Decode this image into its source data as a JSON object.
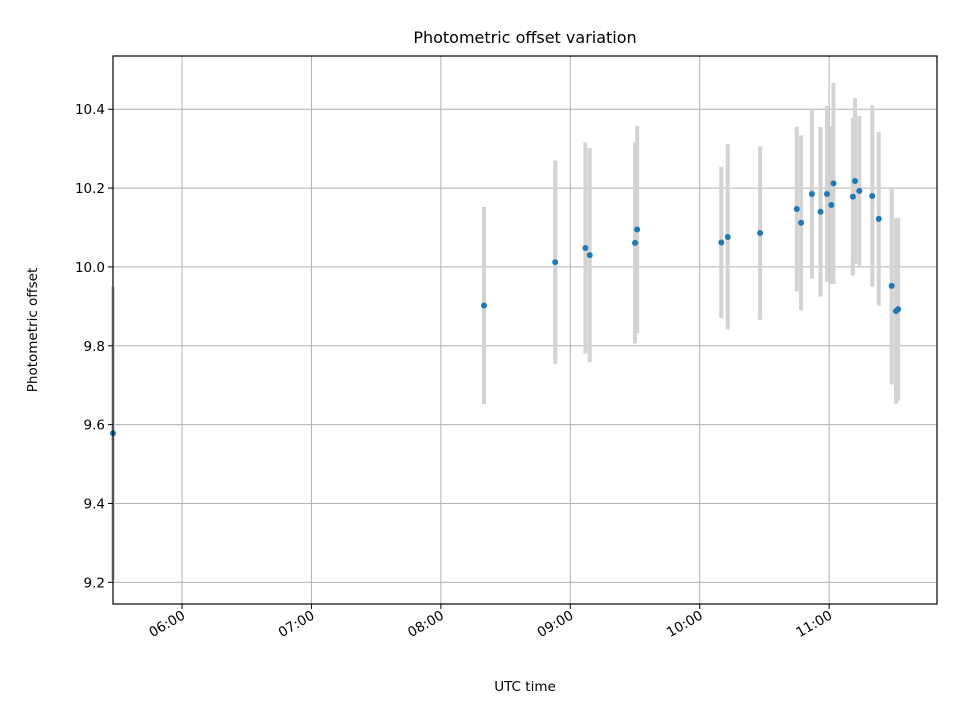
{
  "chart_data": {
    "type": "scatter",
    "title": "Photometric offset variation",
    "xlabel": "UTC time",
    "ylabel": "Photometric offset",
    "xlim": [
      "05:28",
      "11:50"
    ],
    "ylim": [
      9.145,
      10.535
    ],
    "x_ticks": [
      "06:00",
      "07:00",
      "08:00",
      "09:00",
      "10:00",
      "11:00"
    ],
    "y_ticks": [
      "9.2",
      "9.4",
      "9.6",
      "9.8",
      "10.0",
      "10.2",
      "10.4"
    ],
    "grid": true,
    "point_color": "#1f77b4",
    "errorbar_color": "#d3d3d3",
    "points": [
      {
        "x": "05:28",
        "y": 9.578,
        "err": 0.372
      },
      {
        "x": "08:20",
        "y": 9.902,
        "err": 0.25
      },
      {
        "x": "08:53",
        "y": 10.012,
        "err": 0.258
      },
      {
        "x": "09:07",
        "y": 10.048,
        "err": 0.268
      },
      {
        "x": "09:09",
        "y": 10.03,
        "err": 0.272
      },
      {
        "x": "09:30",
        "y": 10.061,
        "err": 0.255
      },
      {
        "x": "09:31",
        "y": 10.095,
        "err": 0.263
      },
      {
        "x": "10:10",
        "y": 10.062,
        "err": 0.192
      },
      {
        "x": "10:13",
        "y": 10.076,
        "err": 0.235
      },
      {
        "x": "10:28",
        "y": 10.086,
        "err": 0.22
      },
      {
        "x": "10:45",
        "y": 10.147,
        "err": 0.209
      },
      {
        "x": "10:47",
        "y": 10.112,
        "err": 0.222
      },
      {
        "x": "10:52",
        "y": 10.185,
        "err": 0.215
      },
      {
        "x": "10:56",
        "y": 10.14,
        "err": 0.215
      },
      {
        "x": "10:59",
        "y": 10.185,
        "err": 0.223
      },
      {
        "x": "11:01",
        "y": 10.157,
        "err": 0.2
      },
      {
        "x": "11:02",
        "y": 10.212,
        "err": 0.255
      },
      {
        "x": "11:11",
        "y": 10.178,
        "err": 0.2
      },
      {
        "x": "11:12",
        "y": 10.218,
        "err": 0.21
      },
      {
        "x": "11:14",
        "y": 10.193,
        "err": 0.19
      },
      {
        "x": "11:20",
        "y": 10.18,
        "err": 0.23
      },
      {
        "x": "11:23",
        "y": 10.122,
        "err": 0.22
      },
      {
        "x": "11:29",
        "y": 9.952,
        "err": 0.25
      },
      {
        "x": "11:31",
        "y": 9.888,
        "err": 0.235
      },
      {
        "x": "11:32",
        "y": 9.893,
        "err": 0.232
      }
    ]
  }
}
